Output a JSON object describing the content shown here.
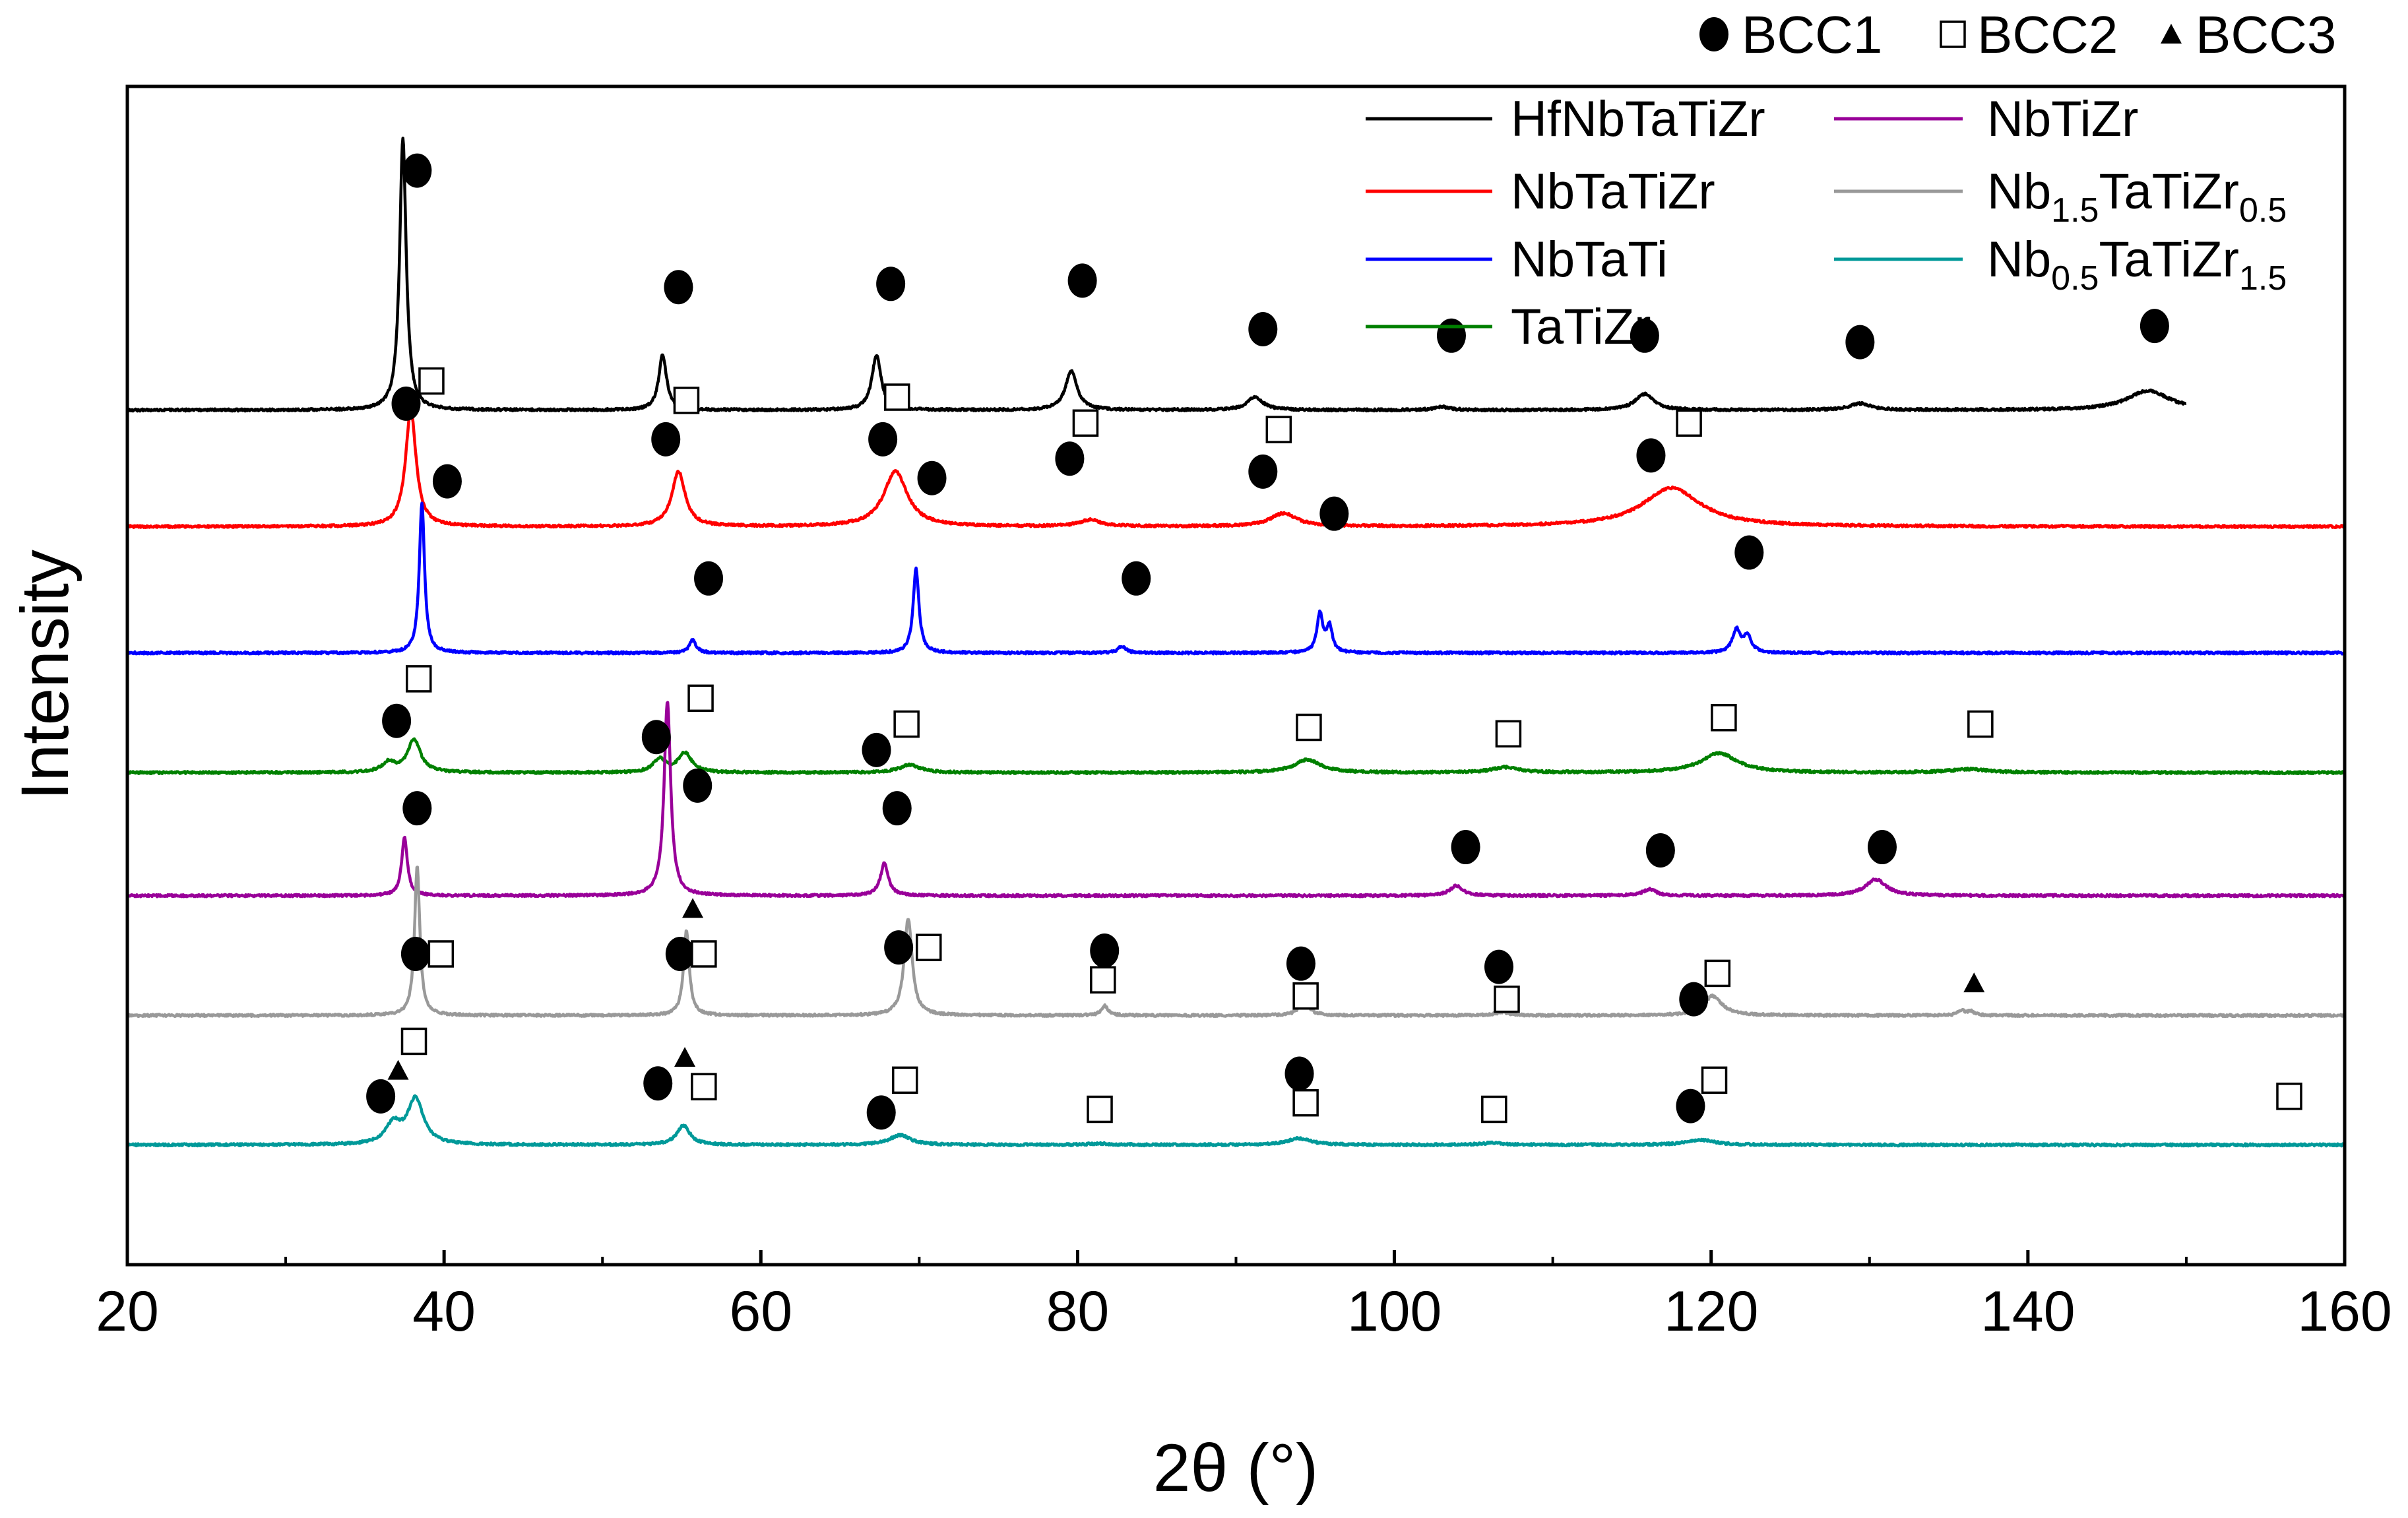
{
  "chart_data": {
    "type": "line",
    "title": "",
    "xlabel": "2θ (°)",
    "ylabel": "Intensity",
    "xlim": [
      20,
      160
    ],
    "x_ticks": [
      20,
      40,
      60,
      80,
      100,
      120,
      140,
      160
    ],
    "y_ticks_shown": false,
    "grid": false,
    "legend_position": "top-right",
    "phase_legend": [
      {
        "name": "BCC1",
        "marker": "circle-filled"
      },
      {
        "name": "BCC2",
        "marker": "square-open"
      },
      {
        "name": "BCC3",
        "marker": "triangle-filled"
      }
    ],
    "series": [
      {
        "name": "HfNbTaTiZr",
        "formula": [
          {
            "t": "HfNbTaTiZr"
          }
        ],
        "color": "#000000",
        "xmax": 150,
        "offset": 7.5,
        "peaks": [
          [
            37.4,
            4.2,
            0.25
          ],
          [
            53.8,
            0.85,
            0.3
          ],
          [
            67.3,
            0.85,
            0.35
          ],
          [
            79.6,
            0.6,
            0.45
          ],
          [
            91.2,
            0.2,
            0.6
          ],
          [
            103,
            0.05,
            0.6
          ],
          [
            115.8,
            0.25,
            0.7
          ],
          [
            129.4,
            0.1,
            0.8
          ],
          [
            147.6,
            0.3,
            1.6
          ]
        ],
        "markers": [
          {
            "x": 38.3,
            "y": 11.2,
            "phase": "BCC1"
          },
          {
            "x": 54.8,
            "y": 9.4,
            "phase": "BCC1"
          },
          {
            "x": 68.2,
            "y": 9.45,
            "phase": "BCC1"
          },
          {
            "x": 80.3,
            "y": 9.5,
            "phase": "BCC1"
          },
          {
            "x": 91.7,
            "y": 8.75,
            "phase": "BCC1"
          },
          {
            "x": 103.6,
            "y": 8.65,
            "phase": "BCC1"
          },
          {
            "x": 115.8,
            "y": 8.65,
            "phase": "BCC1"
          },
          {
            "x": 129.4,
            "y": 8.55,
            "phase": "BCC1"
          },
          {
            "x": 148,
            "y": 8.8,
            "phase": "BCC1"
          }
        ]
      },
      {
        "name": "NbTaTiZr",
        "formula": [
          {
            "t": "NbTaTiZr"
          }
        ],
        "color": "#ff0000",
        "xmax": 160,
        "offset": 5.7,
        "peaks": [
          [
            37.9,
            1.8,
            0.4
          ],
          [
            54.8,
            0.85,
            0.5
          ],
          [
            68.5,
            0.85,
            0.9
          ],
          [
            80.8,
            0.1,
            0.8
          ],
          [
            93,
            0.2,
            1.0
          ],
          [
            117.5,
            0.6,
            2.2
          ]
        ],
        "markers": [
          {
            "x": 39.2,
            "y": 7.95,
            "phase": "BCC2"
          },
          {
            "x": 37.6,
            "y": 7.6,
            "phase": "BCC1"
          },
          {
            "x": 55.3,
            "y": 7.65,
            "phase": "BCC2"
          },
          {
            "x": 54,
            "y": 7.05,
            "phase": "BCC1"
          },
          {
            "x": 68.6,
            "y": 7.7,
            "phase": "BCC2"
          },
          {
            "x": 67.7,
            "y": 7.05,
            "phase": "BCC1"
          },
          {
            "x": 80.5,
            "y": 7.3,
            "phase": "BCC2"
          },
          {
            "x": 79.5,
            "y": 6.75,
            "phase": "BCC1"
          },
          {
            "x": 92.7,
            "y": 7.2,
            "phase": "BCC2"
          },
          {
            "x": 91.7,
            "y": 6.55,
            "phase": "BCC1"
          },
          {
            "x": 118.6,
            "y": 7.3,
            "phase": "BCC2"
          },
          {
            "x": 116.2,
            "y": 6.8,
            "phase": "BCC1"
          }
        ]
      },
      {
        "name": "NbTaTi",
        "formula": [
          {
            "t": "NbTaTi"
          }
        ],
        "color": "#0000ff",
        "xmax": 160,
        "offset": 3.75,
        "peaks": [
          [
            38.6,
            2.3,
            0.2
          ],
          [
            55.7,
            0.2,
            0.25
          ],
          [
            69.8,
            1.3,
            0.22
          ],
          [
            82.8,
            0.1,
            0.3
          ],
          [
            95.3,
            0.6,
            0.22
          ],
          [
            95.9,
            0.4,
            0.22
          ],
          [
            121.6,
            0.35,
            0.3
          ],
          [
            122.3,
            0.25,
            0.3
          ]
        ],
        "markers": [
          {
            "x": 40.2,
            "y": 6.4,
            "phase": "BCC1"
          },
          {
            "x": 56.7,
            "y": 4.9,
            "phase": "BCC1"
          },
          {
            "x": 70.8,
            "y": 6.45,
            "phase": "BCC1"
          },
          {
            "x": 83.7,
            "y": 4.9,
            "phase": "BCC1"
          },
          {
            "x": 96.2,
            "y": 5.9,
            "phase": "BCC1"
          },
          {
            "x": 122.4,
            "y": 5.3,
            "phase": "BCC1"
          }
        ]
      },
      {
        "name": "TaTiZr",
        "formula": [
          {
            "t": "TaTiZr"
          }
        ],
        "color": "#008000",
        "xmax": 160,
        "offset": 1.9,
        "peaks": [
          [
            36.5,
            0.15,
            0.5
          ],
          [
            38.1,
            0.5,
            0.5
          ],
          [
            53.6,
            0.2,
            0.5
          ],
          [
            55.2,
            0.3,
            0.5
          ],
          [
            69.4,
            0.12,
            0.8
          ],
          [
            94.5,
            0.2,
            1.0
          ],
          [
            107,
            0.08,
            1.0
          ],
          [
            120.5,
            0.3,
            1.4
          ],
          [
            136.3,
            0.05,
            1.5
          ]
        ],
        "markers": [
          {
            "x": 38.4,
            "y": 3.35,
            "phase": "BCC2"
          },
          {
            "x": 37,
            "y": 2.7,
            "phase": "BCC1"
          },
          {
            "x": 56.2,
            "y": 3.05,
            "phase": "BCC2"
          },
          {
            "x": 53.4,
            "y": 2.45,
            "phase": "BCC1"
          },
          {
            "x": 69.2,
            "y": 2.65,
            "phase": "BCC2"
          },
          {
            "x": 67.3,
            "y": 2.25,
            "phase": "BCC1"
          },
          {
            "x": 94.6,
            "y": 2.6,
            "phase": "BCC2"
          },
          {
            "x": 107.2,
            "y": 2.5,
            "phase": "BCC2"
          },
          {
            "x": 120.8,
            "y": 2.75,
            "phase": "BCC2"
          },
          {
            "x": 137,
            "y": 2.65,
            "phase": "BCC2"
          }
        ]
      },
      {
        "name": "NbTiZr",
        "formula": [
          {
            "t": "NbTiZr"
          }
        ],
        "color": "#990099",
        "xmax": 160,
        "offset": 0.0,
        "peaks": [
          [
            37.5,
            0.9,
            0.22
          ],
          [
            54.1,
            3.0,
            0.25
          ],
          [
            67.8,
            0.5,
            0.3
          ],
          [
            103.9,
            0.15,
            0.5
          ],
          [
            116.1,
            0.1,
            0.5
          ],
          [
            130.4,
            0.25,
            0.8
          ]
        ],
        "markers": [
          {
            "x": 38.3,
            "y": 1.35,
            "phase": "BCC1"
          },
          {
            "x": 56,
            "y": 1.7,
            "phase": "BCC1"
          },
          {
            "x": 68.6,
            "y": 1.35,
            "phase": "BCC1"
          },
          {
            "x": 104.5,
            "y": 0.75,
            "phase": "BCC1"
          },
          {
            "x": 116.8,
            "y": 0.7,
            "phase": "BCC1"
          },
          {
            "x": 130.8,
            "y": 0.75,
            "phase": "BCC1"
          }
        ]
      },
      {
        "name": "Nb1.5TaTiZr0.5",
        "formula": [
          {
            "t": "Nb"
          },
          {
            "t": "1.5",
            "sub": true
          },
          {
            "t": "TaTiZr"
          },
          {
            "t": "0.5",
            "sub": true
          }
        ],
        "color": "#999999",
        "xmax": 160,
        "offset": -1.85,
        "peaks": [
          [
            38.3,
            2.3,
            0.2
          ],
          [
            55.3,
            1.3,
            0.22
          ],
          [
            69.3,
            1.5,
            0.3
          ],
          [
            81.7,
            0.15,
            0.25
          ],
          [
            94.3,
            0.2,
            0.4
          ],
          [
            106.8,
            0.05,
            0.5
          ],
          [
            120.1,
            0.3,
            0.7
          ],
          [
            135.8,
            0.08,
            0.25
          ],
          [
            136.4,
            0.06,
            0.25
          ]
        ],
        "markers": [
          {
            "x": 38.2,
            "y": -0.9,
            "phase": "BCC1"
          },
          {
            "x": 39.8,
            "y": -0.9,
            "phase": "BCC2"
          },
          {
            "x": 55.7,
            "y": -0.2,
            "phase": "BCC3"
          },
          {
            "x": 54.9,
            "y": -0.9,
            "phase": "BCC1"
          },
          {
            "x": 56.4,
            "y": -0.9,
            "phase": "BCC2"
          },
          {
            "x": 68.7,
            "y": -0.8,
            "phase": "BCC1"
          },
          {
            "x": 70.6,
            "y": -0.8,
            "phase": "BCC2"
          },
          {
            "x": 81.7,
            "y": -0.85,
            "phase": "BCC1"
          },
          {
            "x": 81.6,
            "y": -1.3,
            "phase": "BCC2"
          },
          {
            "x": 94.1,
            "y": -1.05,
            "phase": "BCC1"
          },
          {
            "x": 94.4,
            "y": -1.55,
            "phase": "BCC2"
          },
          {
            "x": 106.6,
            "y": -1.1,
            "phase": "BCC1"
          },
          {
            "x": 107.1,
            "y": -1.6,
            "phase": "BCC2"
          },
          {
            "x": 118.9,
            "y": -1.6,
            "phase": "BCC1"
          },
          {
            "x": 120.4,
            "y": -1.2,
            "phase": "BCC2"
          },
          {
            "x": 136.6,
            "y": -1.35,
            "phase": "BCC3"
          }
        ]
      },
      {
        "name": "Nb0.5TaTiZr1.5",
        "formula": [
          {
            "t": "Nb"
          },
          {
            "t": "0.5",
            "sub": true
          },
          {
            "t": "TaTiZr"
          },
          {
            "t": "1.5",
            "sub": true
          }
        ],
        "color": "#009999",
        "xmax": 160,
        "offset": -3.85,
        "peaks": [
          [
            36.8,
            0.3,
            0.6
          ],
          [
            38.2,
            0.7,
            0.6
          ],
          [
            55.1,
            0.3,
            0.5
          ],
          [
            68.8,
            0.15,
            0.8
          ],
          [
            81.3,
            0.02,
            0.8
          ],
          [
            94,
            0.1,
            0.9
          ],
          [
            106.2,
            0.03,
            0.9
          ],
          [
            119.3,
            0.08,
            1.0
          ]
        ],
        "markers": [
          {
            "x": 38.1,
            "y": -2.25,
            "phase": "BCC2"
          },
          {
            "x": 37.1,
            "y": -2.7,
            "phase": "BCC3"
          },
          {
            "x": 36,
            "y": -3.1,
            "phase": "BCC1"
          },
          {
            "x": 55.2,
            "y": -2.5,
            "phase": "BCC3"
          },
          {
            "x": 56.4,
            "y": -2.95,
            "phase": "BCC2"
          },
          {
            "x": 53.5,
            "y": -2.9,
            "phase": "BCC1"
          },
          {
            "x": 69.1,
            "y": -2.85,
            "phase": "BCC2"
          },
          {
            "x": 67.6,
            "y": -3.35,
            "phase": "BCC1"
          },
          {
            "x": 81.4,
            "y": -3.3,
            "phase": "BCC2"
          },
          {
            "x": 94,
            "y": -2.75,
            "phase": "BCC1"
          },
          {
            "x": 94.4,
            "y": -3.2,
            "phase": "BCC2"
          },
          {
            "x": 106.3,
            "y": -3.3,
            "phase": "BCC2"
          },
          {
            "x": 120.2,
            "y": -2.85,
            "phase": "BCC2"
          },
          {
            "x": 118.7,
            "y": -3.25,
            "phase": "BCC1"
          },
          {
            "x": 156.5,
            "y": -3.1,
            "phase": "BCC2"
          }
        ]
      }
    ]
  }
}
